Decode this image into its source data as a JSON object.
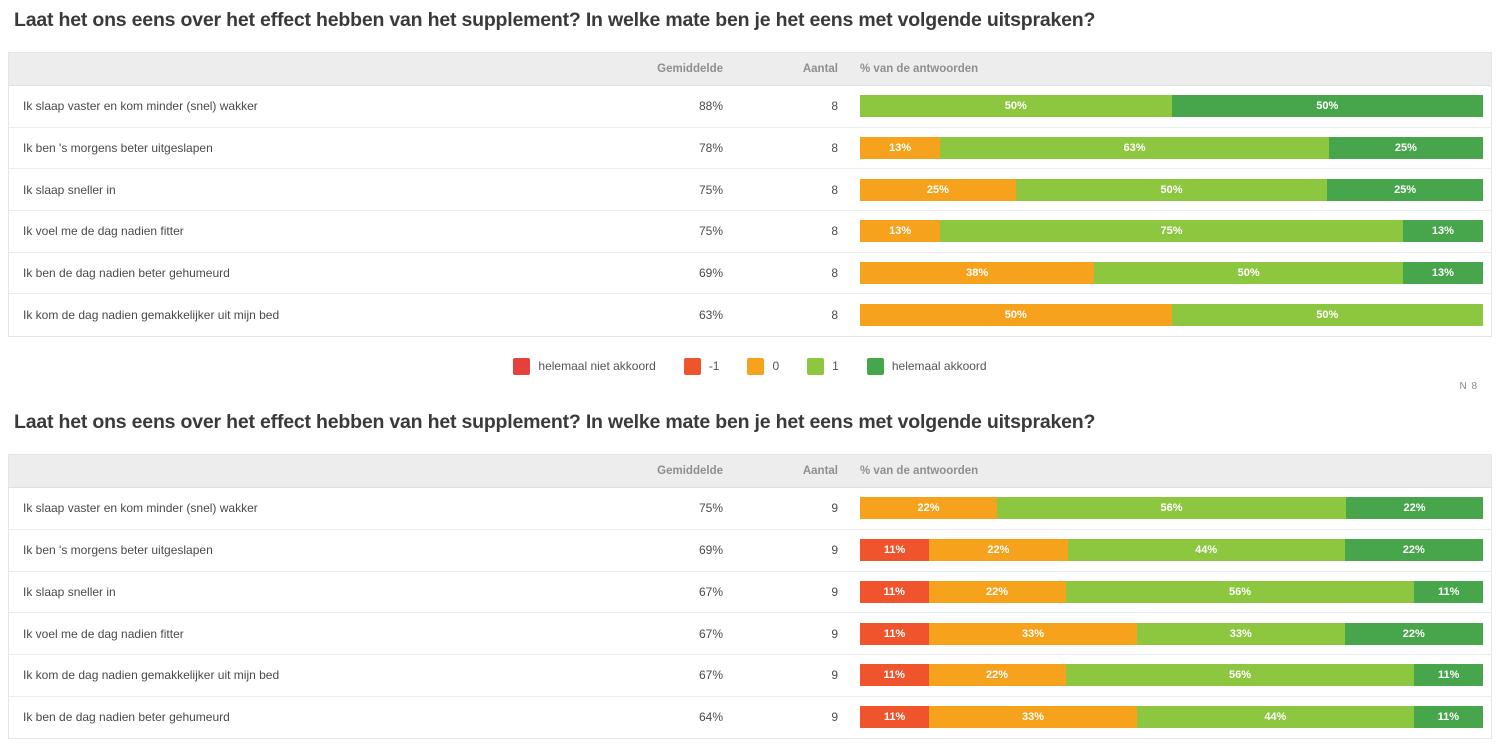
{
  "palette": {
    "disagree": "#e6403c",
    "minus1": "#f0542d",
    "zero": "#f6a21c",
    "one": "#8dc63f",
    "agree": "#47a64b"
  },
  "legend": {
    "items": [
      {
        "label": "helemaal niet akkoord",
        "color": "disagree"
      },
      {
        "label": "-1",
        "color": "minus1"
      },
      {
        "label": "0",
        "color": "zero"
      },
      {
        "label": "1",
        "color": "one"
      },
      {
        "label": "helemaal akkoord",
        "color": "agree"
      }
    ]
  },
  "tables": [
    {
      "title": "Laat het ons eens over het effect hebben van het supplement? In welke mate ben je het eens met volgende uitspraken?",
      "header": {
        "gemiddelde": "Gemiddelde",
        "aantal": "Aantal",
        "antwoorden": "% van de antwoorden"
      },
      "n_label": "N 8",
      "rows": [
        {
          "label": "Ik slaap vaster en kom minder (snel) wakker",
          "gemiddelde": "88%",
          "aantal": "8",
          "segments": [
            {
              "color": "one",
              "pct": 50,
              "label": "50%"
            },
            {
              "color": "agree",
              "pct": 50,
              "label": "50%"
            }
          ]
        },
        {
          "label": "Ik ben 's morgens beter uitgeslapen",
          "gemiddelde": "78%",
          "aantal": "8",
          "segments": [
            {
              "color": "zero",
              "pct": 13,
              "label": "13%"
            },
            {
              "color": "one",
              "pct": 63,
              "label": "63%"
            },
            {
              "color": "agree",
              "pct": 25,
              "label": "25%"
            }
          ]
        },
        {
          "label": "Ik slaap sneller in",
          "gemiddelde": "75%",
          "aantal": "8",
          "segments": [
            {
              "color": "zero",
              "pct": 25,
              "label": "25%"
            },
            {
              "color": "one",
              "pct": 50,
              "label": "50%"
            },
            {
              "color": "agree",
              "pct": 25,
              "label": "25%"
            }
          ]
        },
        {
          "label": "Ik voel me de dag nadien fitter",
          "gemiddelde": "75%",
          "aantal": "8",
          "segments": [
            {
              "color": "zero",
              "pct": 13,
              "label": "13%"
            },
            {
              "color": "one",
              "pct": 75,
              "label": "75%"
            },
            {
              "color": "agree",
              "pct": 13,
              "label": "13%"
            }
          ]
        },
        {
          "label": "Ik ben de dag nadien beter gehumeurd",
          "gemiddelde": "69%",
          "aantal": "8",
          "segments": [
            {
              "color": "zero",
              "pct": 38,
              "label": "38%"
            },
            {
              "color": "one",
              "pct": 50,
              "label": "50%"
            },
            {
              "color": "agree",
              "pct": 13,
              "label": "13%"
            }
          ]
        },
        {
          "label": "Ik kom de dag nadien gemakkelijker uit mijn bed",
          "gemiddelde": "63%",
          "aantal": "8",
          "segments": [
            {
              "color": "zero",
              "pct": 50,
              "label": "50%"
            },
            {
              "color": "one",
              "pct": 50,
              "label": "50%"
            }
          ]
        }
      ]
    },
    {
      "title": "Laat het ons eens over het effect hebben van het supplement? In welke mate ben je het eens met volgende uitspraken?",
      "header": {
        "gemiddelde": "Gemiddelde",
        "aantal": "Aantal",
        "antwoorden": "% van de antwoorden"
      },
      "rows": [
        {
          "label": "Ik slaap vaster en kom minder (snel) wakker",
          "gemiddelde": "75%",
          "aantal": "9",
          "segments": [
            {
              "color": "zero",
              "pct": 22,
              "label": "22%"
            },
            {
              "color": "one",
              "pct": 56,
              "label": "56%"
            },
            {
              "color": "agree",
              "pct": 22,
              "label": "22%"
            }
          ]
        },
        {
          "label": "Ik ben 's morgens beter uitgeslapen",
          "gemiddelde": "69%",
          "aantal": "9",
          "segments": [
            {
              "color": "minus1",
              "pct": 11,
              "label": "11%"
            },
            {
              "color": "zero",
              "pct": 22,
              "label": "22%"
            },
            {
              "color": "one",
              "pct": 44,
              "label": "44%"
            },
            {
              "color": "agree",
              "pct": 22,
              "label": "22%"
            }
          ]
        },
        {
          "label": "Ik slaap sneller in",
          "gemiddelde": "67%",
          "aantal": "9",
          "segments": [
            {
              "color": "minus1",
              "pct": 11,
              "label": "11%"
            },
            {
              "color": "zero",
              "pct": 22,
              "label": "22%"
            },
            {
              "color": "one",
              "pct": 56,
              "label": "56%"
            },
            {
              "color": "agree",
              "pct": 11,
              "label": "11%"
            }
          ]
        },
        {
          "label": "Ik voel me de dag nadien fitter",
          "gemiddelde": "67%",
          "aantal": "9",
          "segments": [
            {
              "color": "minus1",
              "pct": 11,
              "label": "11%"
            },
            {
              "color": "zero",
              "pct": 33,
              "label": "33%"
            },
            {
              "color": "one",
              "pct": 33,
              "label": "33%"
            },
            {
              "color": "agree",
              "pct": 22,
              "label": "22%"
            }
          ]
        },
        {
          "label": "Ik kom de dag nadien gemakkelijker uit mijn bed",
          "gemiddelde": "67%",
          "aantal": "9",
          "segments": [
            {
              "color": "minus1",
              "pct": 11,
              "label": "11%"
            },
            {
              "color": "zero",
              "pct": 22,
              "label": "22%"
            },
            {
              "color": "one",
              "pct": 56,
              "label": "56%"
            },
            {
              "color": "agree",
              "pct": 11,
              "label": "11%"
            }
          ]
        },
        {
          "label": "Ik ben de dag nadien beter gehumeurd",
          "gemiddelde": "64%",
          "aantal": "9",
          "segments": [
            {
              "color": "minus1",
              "pct": 11,
              "label": "11%"
            },
            {
              "color": "zero",
              "pct": 33,
              "label": "33%"
            },
            {
              "color": "one",
              "pct": 44,
              "label": "44%"
            },
            {
              "color": "agree",
              "pct": 11,
              "label": "11%"
            }
          ]
        }
      ]
    }
  ],
  "chart_data": [
    {
      "type": "bar",
      "stacked": true,
      "orientation": "horizontal",
      "title": "Laat het ons eens over het effect hebben van het supplement? In welke mate ben je het eens met volgende uitspraken?",
      "n": 8,
      "unit": "%",
      "xlim": [
        0,
        100
      ],
      "legend_position": "bottom",
      "categories": [
        "Ik slaap vaster en kom minder (snel) wakker",
        "Ik ben 's morgens beter uitgeslapen",
        "Ik slaap sneller in",
        "Ik voel me de dag nadien fitter",
        "Ik ben de dag nadien beter gehumeurd",
        "Ik kom de dag nadien gemakkelijker uit mijn bed"
      ],
      "series": [
        {
          "name": "helemaal niet akkoord",
          "color": "#e6403c",
          "values": [
            0,
            0,
            0,
            0,
            0,
            0
          ]
        },
        {
          "name": "-1",
          "color": "#f0542d",
          "values": [
            0,
            0,
            0,
            0,
            0,
            0
          ]
        },
        {
          "name": "0",
          "color": "#f6a21c",
          "values": [
            0,
            13,
            25,
            13,
            38,
            50
          ]
        },
        {
          "name": "1",
          "color": "#8dc63f",
          "values": [
            50,
            63,
            50,
            75,
            50,
            50
          ]
        },
        {
          "name": "helemaal akkoord",
          "color": "#47a64b",
          "values": [
            50,
            25,
            25,
            13,
            13,
            0
          ]
        }
      ],
      "gemiddelde": [
        "88%",
        "78%",
        "75%",
        "75%",
        "69%",
        "63%"
      ],
      "aantal": [
        8,
        8,
        8,
        8,
        8,
        8
      ]
    },
    {
      "type": "bar",
      "stacked": true,
      "orientation": "horizontal",
      "title": "Laat het ons eens over het effect hebben van het supplement? In welke mate ben je het eens met volgende uitspraken?",
      "n": 9,
      "unit": "%",
      "xlim": [
        0,
        100
      ],
      "legend_position": "bottom",
      "categories": [
        "Ik slaap vaster en kom minder (snel) wakker",
        "Ik ben 's morgens beter uitgeslapen",
        "Ik slaap sneller in",
        "Ik voel me de dag nadien fitter",
        "Ik kom de dag nadien gemakkelijker uit mijn bed",
        "Ik ben de dag nadien beter gehumeurd"
      ],
      "series": [
        {
          "name": "helemaal niet akkoord",
          "color": "#e6403c",
          "values": [
            0,
            0,
            0,
            0,
            0,
            0
          ]
        },
        {
          "name": "-1",
          "color": "#f0542d",
          "values": [
            0,
            11,
            11,
            11,
            11,
            11
          ]
        },
        {
          "name": "0",
          "color": "#f6a21c",
          "values": [
            22,
            22,
            22,
            33,
            22,
            33
          ]
        },
        {
          "name": "1",
          "color": "#8dc63f",
          "values": [
            56,
            44,
            56,
            33,
            56,
            44
          ]
        },
        {
          "name": "helemaal akkoord",
          "color": "#47a64b",
          "values": [
            22,
            22,
            11,
            22,
            11,
            11
          ]
        }
      ],
      "gemiddelde": [
        "75%",
        "69%",
        "67%",
        "67%",
        "67%",
        "64%"
      ],
      "aantal": [
        9,
        9,
        9,
        9,
        9,
        9
      ]
    }
  ]
}
